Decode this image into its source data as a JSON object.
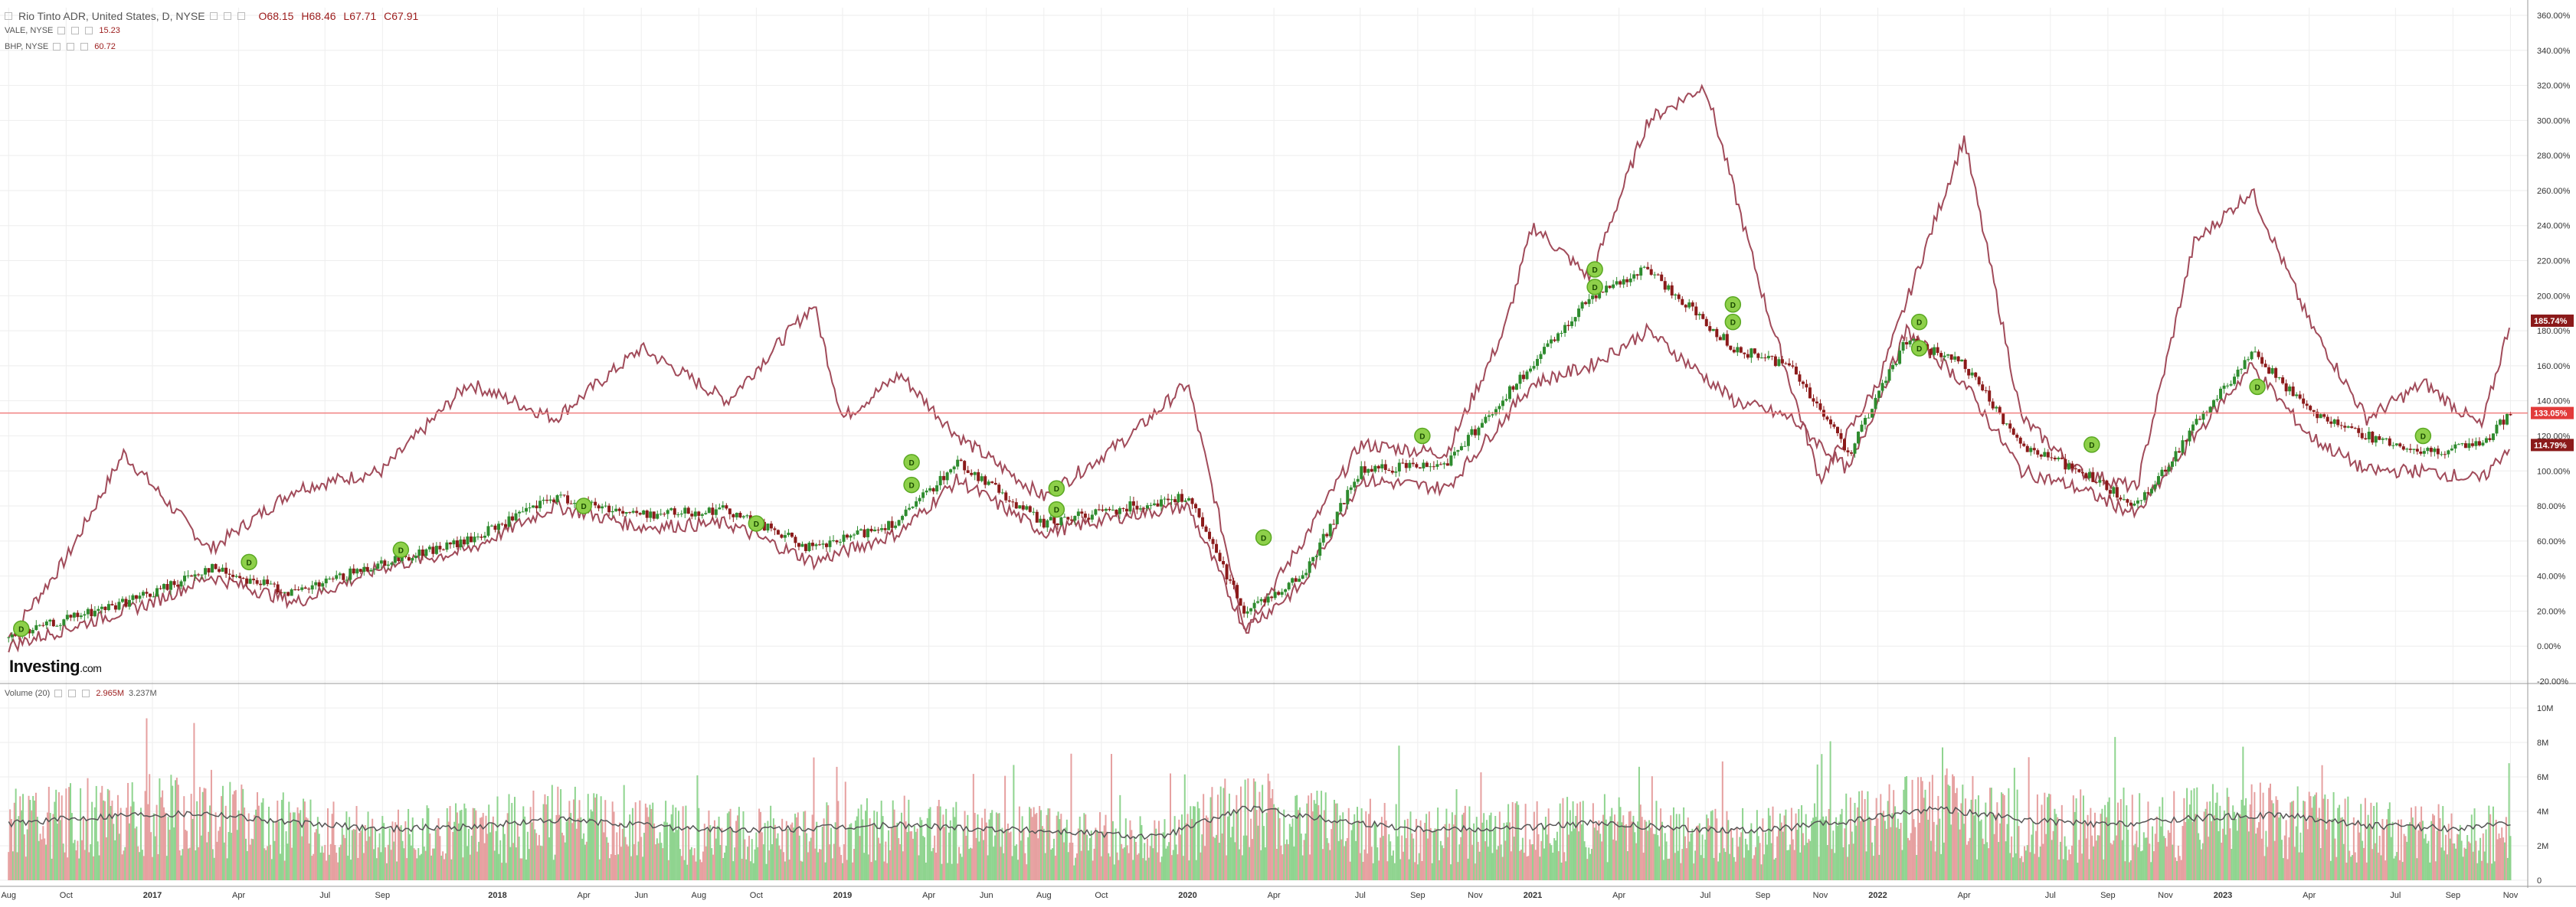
{
  "header": {
    "title": "Rio Tinto ADR, United States, D, NYSE",
    "ohlc": {
      "open": "O68.15",
      "high": "H68.46",
      "low": "L67.71",
      "close": "C67.91"
    }
  },
  "legend": [
    {
      "symbol": "VALE, NYSE",
      "value": "15.23"
    },
    {
      "symbol": "BHP, NYSE",
      "value": "60.72"
    }
  ],
  "volume_legend": {
    "label": "Volume (20)",
    "value1": "2.965M",
    "value2": "3.237M"
  },
  "logo": {
    "text": "Investing",
    "suffix": ".com"
  },
  "colors": {
    "up": "#2e8b2e",
    "down": "#8b1a1a",
    "compare_line": "#a14b5a",
    "vol_up": "#8fd48f",
    "vol_down": "#e6a0a0",
    "volume_ma": "#555555",
    "current_line": "#f08080",
    "grid": "#eeeeee"
  },
  "chart_data": [
    {
      "type": "line",
      "title": "Rio Tinto ADR, United States, D, NYSE",
      "y_unit": "%",
      "ylim": [
        -20,
        360
      ],
      "y_ticks": [
        "-20.00%",
        "0.00%",
        "20.00%",
        "40.00%",
        "60.00%",
        "80.00%",
        "100.00%",
        "120.00%",
        "140.00%",
        "160.00%",
        "180.00%",
        "200.00%",
        "220.00%",
        "240.00%",
        "260.00%",
        "280.00%",
        "300.00%",
        "320.00%",
        "340.00%",
        "360.00%"
      ],
      "x_ticks": [
        "Aug",
        "Oct",
        "2017",
        "Apr",
        "Jul",
        "Sep",
        "2018",
        "Apr",
        "Jun",
        "Aug",
        "Oct",
        "2019",
        "Apr",
        "Jun",
        "Aug",
        "Oct",
        "2020",
        "Apr",
        "Jul",
        "Sep",
        "Nov",
        "2021",
        "Apr",
        "Jul",
        "Sep",
        "Nov",
        "2022",
        "Apr",
        "Jul",
        "Sep",
        "Nov",
        "2023",
        "Apr",
        "Jul",
        "Sep",
        "Nov"
      ],
      "x_range": [
        "2016-08",
        "2023-11"
      ],
      "grid": true,
      "current_levels": {
        "RIO": "133.05%",
        "BHP": "114.79%",
        "VALE": "185.74%"
      },
      "series": [
        {
          "name": "Rio Tinto ADR",
          "style": "candlestick",
          "x": [
            "2016-08",
            "2016-10",
            "2017-01",
            "2017-03",
            "2017-06",
            "2017-09",
            "2017-12",
            "2018-03",
            "2018-06",
            "2018-09",
            "2018-12",
            "2019-03",
            "2019-05",
            "2019-08",
            "2019-11",
            "2020-01",
            "2020-03",
            "2020-05",
            "2020-07",
            "2020-10",
            "2021-01",
            "2021-03",
            "2021-05",
            "2021-08",
            "2021-10",
            "2021-12",
            "2022-02",
            "2022-04",
            "2022-06",
            "2022-08",
            "2022-10",
            "2022-12",
            "2023-02",
            "2023-04",
            "2023-06",
            "2023-08",
            "2023-10",
            "2023-11"
          ],
          "values": [
            5,
            15,
            30,
            45,
            30,
            48,
            60,
            85,
            75,
            78,
            55,
            72,
            105,
            70,
            80,
            85,
            20,
            40,
            100,
            105,
            160,
            200,
            215,
            170,
            160,
            110,
            175,
            160,
            115,
            100,
            80,
            125,
            168,
            135,
            120,
            110,
            115,
            133
          ]
        },
        {
          "name": "VALE, NYSE",
          "x": [
            "2016-08",
            "2016-10",
            "2016-12",
            "2017-03",
            "2017-06",
            "2017-09",
            "2017-12",
            "2018-03",
            "2018-06",
            "2018-09",
            "2018-12",
            "2019-01",
            "2019-03",
            "2019-05",
            "2019-08",
            "2019-11",
            "2020-01",
            "2020-03",
            "2020-05",
            "2020-07",
            "2020-10",
            "2020-12",
            "2021-01",
            "2021-03",
            "2021-05",
            "2021-07",
            "2021-09",
            "2021-11",
            "2022-01",
            "2022-04",
            "2022-06",
            "2022-08",
            "2022-10",
            "2022-12",
            "2023-02",
            "2023-04",
            "2023-06",
            "2023-08",
            "2023-10",
            "2023-11"
          ],
          "values": [
            5,
            50,
            110,
            55,
            90,
            100,
            150,
            130,
            170,
            140,
            195,
            130,
            155,
            120,
            85,
            120,
            150,
            10,
            60,
            115,
            110,
            180,
            240,
            210,
            300,
            320,
            200,
            95,
            150,
            290,
            130,
            100,
            90,
            230,
            260,
            185,
            130,
            150,
            125,
            185.74
          ]
        },
        {
          "name": "BHP, NYSE",
          "x": [
            "2016-08",
            "2016-10",
            "2017-01",
            "2017-03",
            "2017-06",
            "2017-09",
            "2017-12",
            "2018-03",
            "2018-06",
            "2018-09",
            "2018-12",
            "2019-03",
            "2019-05",
            "2019-08",
            "2019-11",
            "2020-01",
            "2020-03",
            "2020-05",
            "2020-07",
            "2020-10",
            "2021-01",
            "2021-03",
            "2021-05",
            "2021-08",
            "2021-10",
            "2021-12",
            "2022-02",
            "2022-04",
            "2022-06",
            "2022-08",
            "2022-10",
            "2022-12",
            "2023-02",
            "2023-04",
            "2023-06",
            "2023-08",
            "2023-10",
            "2023-11"
          ],
          "values": [
            0,
            10,
            25,
            40,
            25,
            45,
            55,
            80,
            68,
            70,
            48,
            65,
            95,
            65,
            75,
            80,
            10,
            35,
            95,
            90,
            150,
            160,
            180,
            140,
            130,
            100,
            180,
            150,
            100,
            90,
            75,
            120,
            160,
            120,
            100,
            100,
            95,
            114.79
          ]
        }
      ]
    },
    {
      "type": "bar",
      "title": "Volume (20)",
      "ylim": [
        0,
        10
      ],
      "y_unit": "M",
      "y_ticks": [
        "0",
        "2M",
        "4M",
        "6M",
        "8M",
        "10M"
      ],
      "series": [
        {
          "name": "Volume",
          "x": [
            "2016-08",
            "2016-12",
            "2017-03",
            "2017-06",
            "2017-09",
            "2017-12",
            "2018-03",
            "2018-06",
            "2018-09",
            "2018-12",
            "2019-03",
            "2019-06",
            "2019-09",
            "2019-12",
            "2020-03",
            "2020-06",
            "2020-09",
            "2020-12",
            "2021-03",
            "2021-06",
            "2021-09",
            "2021-12",
            "2022-03",
            "2022-06",
            "2022-09",
            "2022-12",
            "2023-03",
            "2023-06",
            "2023-09",
            "2023-11"
          ],
          "values": [
            3.5,
            4.2,
            4.0,
            3.2,
            3.0,
            3.0,
            3.8,
            3.2,
            2.8,
            3.1,
            3.3,
            3.0,
            2.8,
            2.4,
            4.5,
            3.5,
            2.9,
            3.0,
            3.4,
            3.0,
            2.8,
            3.5,
            4.5,
            3.5,
            3.2,
            3.8,
            4.0,
            3.2,
            2.9,
            2.97
          ]
        },
        {
          "name": "Volume MA",
          "x": [
            "2016-08",
            "2016-12",
            "2017-03",
            "2017-06",
            "2017-09",
            "2017-12",
            "2018-03",
            "2018-06",
            "2018-09",
            "2018-12",
            "2019-03",
            "2019-06",
            "2019-09",
            "2019-12",
            "2020-03",
            "2020-06",
            "2020-09",
            "2020-12",
            "2021-03",
            "2021-06",
            "2021-09",
            "2021-12",
            "2022-03",
            "2022-06",
            "2022-09",
            "2022-12",
            "2023-03",
            "2023-06",
            "2023-09",
            "2023-11"
          ],
          "values": [
            3.3,
            3.8,
            3.9,
            3.3,
            3.0,
            3.1,
            3.5,
            3.2,
            2.9,
            3.0,
            3.2,
            3.0,
            2.8,
            2.5,
            4.2,
            3.5,
            3.0,
            3.0,
            3.3,
            3.0,
            2.9,
            3.4,
            4.2,
            3.5,
            3.2,
            3.6,
            3.8,
            3.2,
            3.0,
            3.24
          ]
        }
      ]
    }
  ]
}
